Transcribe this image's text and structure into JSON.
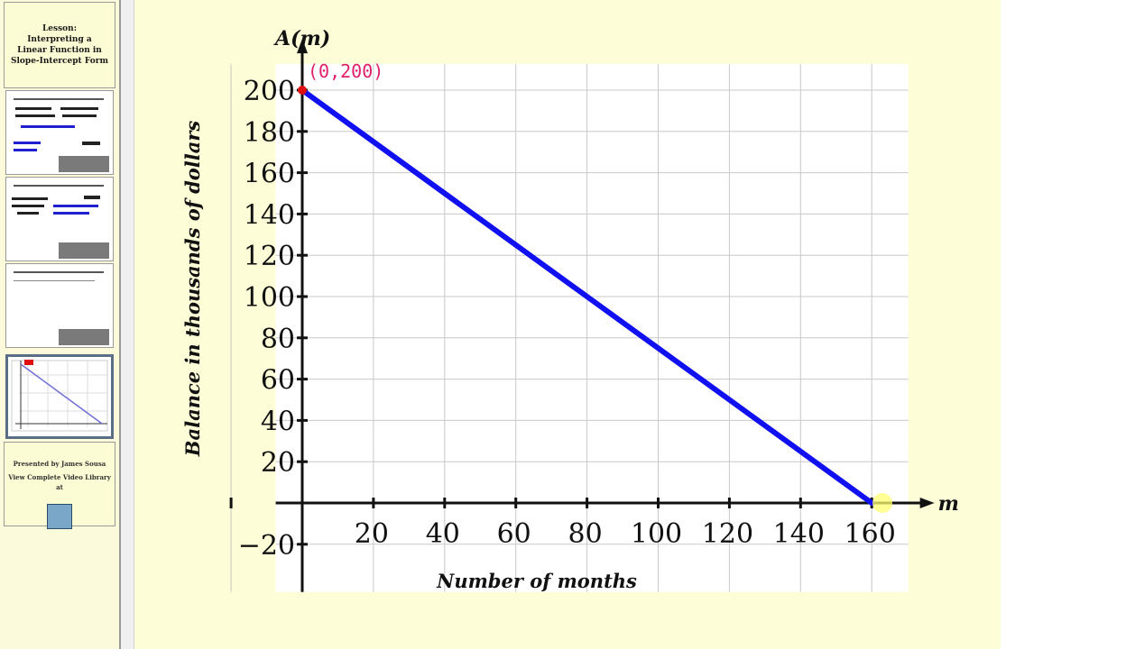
{
  "sidebar": {
    "title_slide": {
      "lines": [
        "Lesson:",
        "Interpreting a",
        "Linear Function in",
        "Slope-Intercept Form"
      ]
    },
    "footer": {
      "presented_by": "Presented by James Sousa",
      "view_library": "View Complete Video Library at"
    }
  },
  "colors": {
    "line": "#1010f0",
    "annotation": "#e0206a",
    "point": "#e01010",
    "slide_bg": "#fdfdd8",
    "grid": "#c8c8c8"
  },
  "chart_data": {
    "type": "line",
    "y_axis_name": "A(m)",
    "x_axis_name": "m",
    "ylabel": "Balance in thousands of dollars",
    "xlabel": "Number of months",
    "xlim": [
      -10,
      170
    ],
    "ylim": [
      -30,
      210
    ],
    "x_ticks": [
      20,
      40,
      60,
      80,
      100,
      120,
      140,
      160
    ],
    "y_ticks": [
      -20,
      20,
      40,
      60,
      80,
      100,
      120,
      140,
      160,
      180,
      200
    ],
    "y_tick_labels": [
      "−20",
      "20",
      "40",
      "60",
      "80",
      "100",
      "120",
      "140",
      "160",
      "180",
      "200"
    ],
    "grid": true,
    "series": [
      {
        "x": [
          0,
          160
        ],
        "y": [
          200,
          0
        ]
      }
    ],
    "point_annotation": {
      "x": 0,
      "y": 200,
      "label": "(0,200)"
    }
  }
}
